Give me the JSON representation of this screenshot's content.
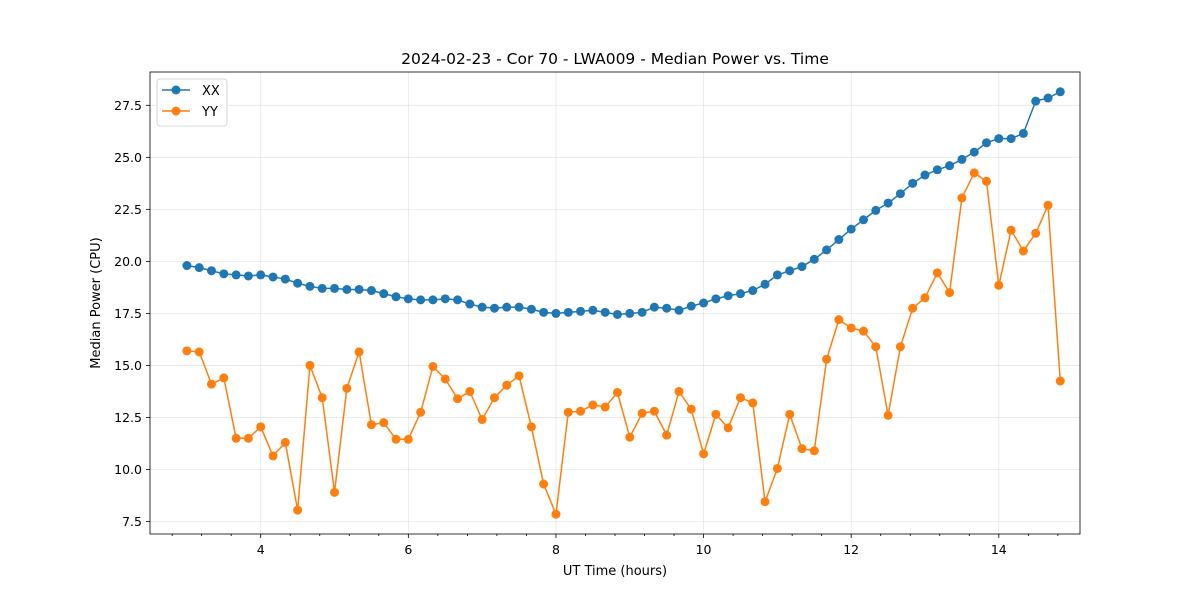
{
  "chart_data": {
    "type": "line",
    "title": "2024-02-23 - Cor 70 - LWA009 - Median Power vs. Time",
    "xlabel": "UT Time (hours)",
    "ylabel": "Median Power (CPU)",
    "xlim": [
      2.5,
      15.1
    ],
    "ylim": [
      6.9,
      29.1
    ],
    "xticks": [
      4,
      6,
      8,
      10,
      12,
      14
    ],
    "xtick_labels": [
      "4",
      "6",
      "8",
      "10",
      "12",
      "14"
    ],
    "x_minor_step": 0.4,
    "yticks": [
      7.5,
      10.0,
      12.5,
      15.0,
      17.5,
      20.0,
      22.5,
      25.0,
      27.5
    ],
    "ytick_labels": [
      "7.5",
      "10.0",
      "12.5",
      "15.0",
      "17.5",
      "20.0",
      "22.5",
      "25.0",
      "27.5"
    ],
    "grid": true,
    "legend_position": "top-left",
    "x": [
      3.0,
      3.167,
      3.333,
      3.5,
      3.667,
      3.833,
      4.0,
      4.167,
      4.333,
      4.5,
      4.667,
      4.833,
      5.0,
      5.167,
      5.333,
      5.5,
      5.667,
      5.833,
      6.0,
      6.167,
      6.333,
      6.5,
      6.667,
      6.833,
      7.0,
      7.167,
      7.333,
      7.5,
      7.667,
      7.833,
      8.0,
      8.167,
      8.333,
      8.5,
      8.667,
      8.833,
      9.0,
      9.167,
      9.333,
      9.5,
      9.667,
      9.833,
      10.0,
      10.167,
      10.333,
      10.5,
      10.667,
      10.833,
      11.0,
      11.167,
      11.333,
      11.5,
      11.667,
      11.833,
      12.0,
      12.167,
      12.333,
      12.5,
      12.667,
      12.833,
      13.0,
      13.167,
      13.333,
      13.5,
      13.667,
      13.833,
      14.0,
      14.167,
      14.333,
      14.5,
      14.667,
      14.833
    ],
    "series": [
      {
        "name": "XX",
        "color": "#1f77b4",
        "values": [
          19.8,
          19.7,
          19.55,
          19.4,
          19.35,
          19.3,
          19.35,
          19.25,
          19.15,
          18.95,
          18.8,
          18.7,
          18.7,
          18.65,
          18.65,
          18.6,
          18.45,
          18.3,
          18.2,
          18.15,
          18.15,
          18.2,
          18.15,
          17.95,
          17.8,
          17.75,
          17.8,
          17.8,
          17.7,
          17.55,
          17.5,
          17.55,
          17.6,
          17.65,
          17.55,
          17.45,
          17.5,
          17.55,
          17.8,
          17.75,
          17.65,
          17.85,
          18.0,
          18.2,
          18.35,
          18.45,
          18.6,
          18.9,
          19.35,
          19.55,
          19.75,
          20.1,
          20.55,
          21.05,
          21.55,
          22.0,
          22.45,
          22.8,
          23.25,
          23.75,
          24.15,
          24.4,
          24.6,
          24.9,
          25.25,
          25.7,
          25.9,
          25.9,
          26.15,
          27.7,
          27.85,
          28.15
        ]
      },
      {
        "name": "YY",
        "color": "#ff7f0e",
        "values": [
          15.7,
          15.65,
          14.1,
          14.4,
          11.5,
          11.5,
          12.05,
          10.65,
          11.3,
          8.05,
          15.0,
          13.45,
          8.9,
          13.9,
          15.65,
          12.15,
          12.25,
          11.45,
          11.45,
          12.75,
          14.95,
          14.35,
          13.4,
          13.75,
          12.4,
          13.45,
          14.05,
          14.5,
          12.05,
          9.3,
          7.85,
          12.75,
          12.8,
          13.1,
          13.0,
          13.7,
          11.55,
          12.7,
          12.8,
          11.65,
          13.75,
          12.9,
          10.75,
          12.65,
          12.0,
          13.45,
          13.2,
          8.45,
          10.05,
          12.65,
          11.0,
          10.9,
          15.3,
          17.2,
          16.8,
          16.65,
          15.9,
          12.6,
          15.9,
          17.75,
          18.25,
          19.45,
          18.5,
          23.05,
          24.25,
          23.85,
          18.85,
          21.5,
          20.5,
          21.35,
          22.7,
          14.25
        ]
      }
    ]
  }
}
